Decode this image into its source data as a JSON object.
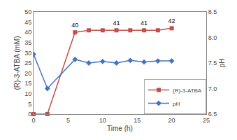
{
  "chart_data": {
    "type": "line",
    "x_label": "Time (h)",
    "y_label": "(R)-3-ATBA (mM)",
    "y2_label": "pH",
    "x": [
      0,
      2,
      6,
      8,
      10,
      12,
      14,
      16,
      18,
      20
    ],
    "series": [
      {
        "name": "(R)-3-ATBA",
        "color": "#c0504d",
        "marker": "square",
        "values": [
          0,
          0,
          40,
          41,
          41,
          41,
          41,
          41,
          41,
          42
        ],
        "value_labels": [
          null,
          null,
          "40",
          null,
          null,
          "41",
          null,
          "41",
          null,
          "42"
        ]
      },
      {
        "name": "pH",
        "color": "#4472c4",
        "marker": "diamond",
        "axis": "y2",
        "values": [
          7.67,
          7.0,
          7.57,
          7.5,
          7.53,
          7.5,
          7.55,
          7.52,
          7.54,
          7.54
        ]
      }
    ],
    "xlim": [
      0,
      25
    ],
    "xticks": [
      0,
      5,
      10,
      15,
      20,
      25
    ],
    "ylim": [
      0,
      50
    ],
    "yticks": [
      0,
      5,
      10,
      15,
      20,
      25,
      30,
      35,
      40,
      45,
      50
    ],
    "y2lim": [
      6.5,
      8.5
    ],
    "y2ticks": [
      6.5,
      {
        "value": 7,
        "label": "7.0"
      },
      7.5,
      {
        "value": 8,
        "label": "8.0"
      },
      8.5
    ],
    "grid": false,
    "legend": "lower right"
  }
}
